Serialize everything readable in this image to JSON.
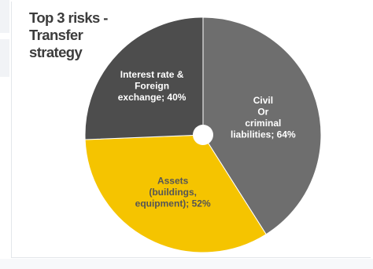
{
  "chart_data": {
    "type": "pie",
    "title_lines": [
      "Top 3 risks -",
      "Transfer",
      "strategy"
    ],
    "slices": [
      {
        "label_lines": [
          "Civil",
          "Or",
          "criminal",
          "liabilities; 64%"
        ],
        "label": "Civil Or criminal liabilities",
        "value": 64,
        "color": "#6e6e6e",
        "text_color": "#ffffff"
      },
      {
        "label_lines": [
          "Assets",
          "(buildings,",
          "equipment); 52%"
        ],
        "label": "Assets (buildings, equipment)",
        "value": 52,
        "color": "#f5c400",
        "text_color": "#555555"
      },
      {
        "label_lines": [
          "Interest rate &",
          "Foreign",
          "exchange; 40%"
        ],
        "label": "Interest rate & Foreign exchange",
        "value": 40,
        "color": "#4d4d4d",
        "text_color": "#ffffff"
      }
    ],
    "donut_hole": true,
    "legend": "none",
    "unit": "%"
  }
}
